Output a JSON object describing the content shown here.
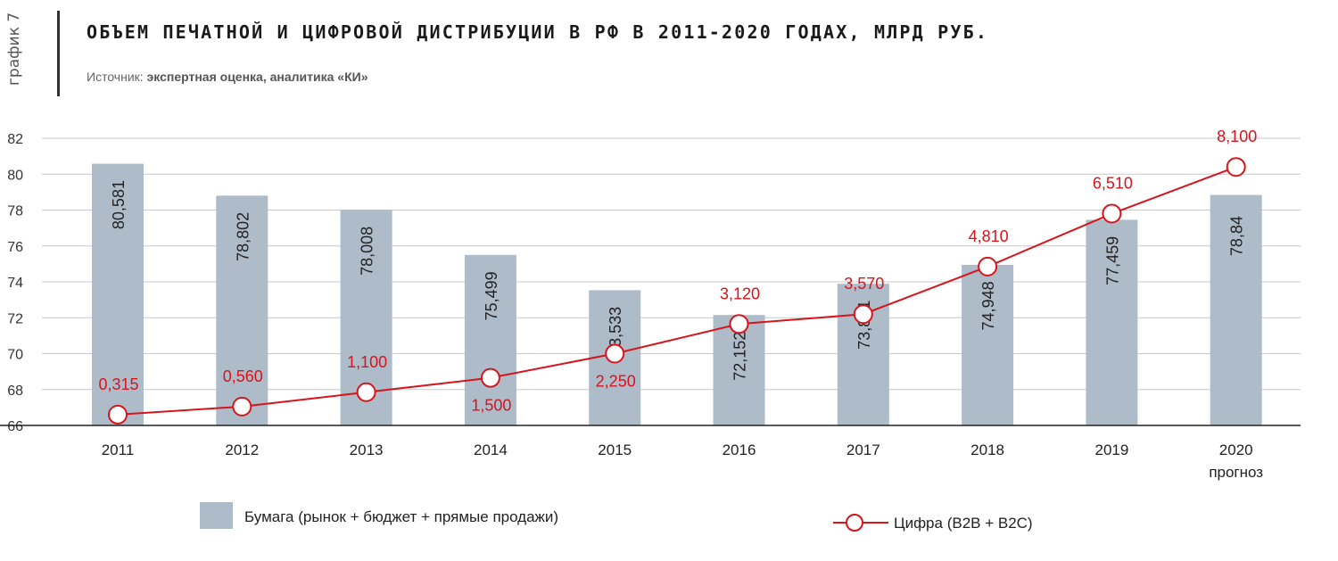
{
  "header": {
    "side_label": "график 7",
    "title": "ОБЪЕМ ПЕЧАТНОЙ И ЦИФРОВОЙ ДИСТРИБУЦИИ В РФ В 2011-2020 ГОДАХ, МЛРД РУБ.",
    "source_prefix": "Источник: ",
    "source_text": "экспертная оценка, аналитика «КИ»"
  },
  "colors": {
    "bar": "#aebbc8",
    "line": "#d7141c",
    "grid": "#c8c8c8"
  },
  "chart_data": {
    "type": "bar",
    "categories": [
      "2011",
      "2012",
      "2013",
      "2014",
      "2015",
      "2016",
      "2017",
      "2018",
      "2019",
      "2020"
    ],
    "category_sublabels": [
      "",
      "",
      "",
      "",
      "",
      "",
      "",
      "",
      "",
      "прогноз"
    ],
    "ylim": [
      66,
      82
    ],
    "yticks": [
      66,
      68,
      70,
      72,
      74,
      76,
      78,
      80,
      82
    ],
    "grid": true,
    "legend_position": "bottom",
    "series": [
      {
        "name": "Бумага (рынок + бюджет + прямые продажи)",
        "type": "bar",
        "values": [
          80.581,
          78.802,
          78.008,
          75.499,
          73.533,
          72.152,
          73.891,
          74.948,
          77.459,
          78.84
        ],
        "labels": [
          "80,581",
          "78,802",
          "78,008",
          "75,499",
          "73,533",
          "72,152",
          "73,891",
          "74,948",
          "77,459",
          "78,84"
        ]
      },
      {
        "name": "Цифра (B2B + B2C)",
        "type": "line",
        "values": [
          0.315,
          0.56,
          1.1,
          1.5,
          2.25,
          3.12,
          3.57,
          4.81,
          6.51,
          8.1
        ],
        "labels": [
          "0,315",
          "0,560",
          "1,100",
          "1,500",
          "2,250",
          "3,120",
          "3,570",
          "4,810",
          "6,510",
          "8,100"
        ],
        "plotted_y": [
          66.6,
          67.05,
          67.85,
          68.65,
          70.0,
          71.65,
          72.2,
          74.85,
          77.8,
          80.4
        ]
      }
    ]
  }
}
